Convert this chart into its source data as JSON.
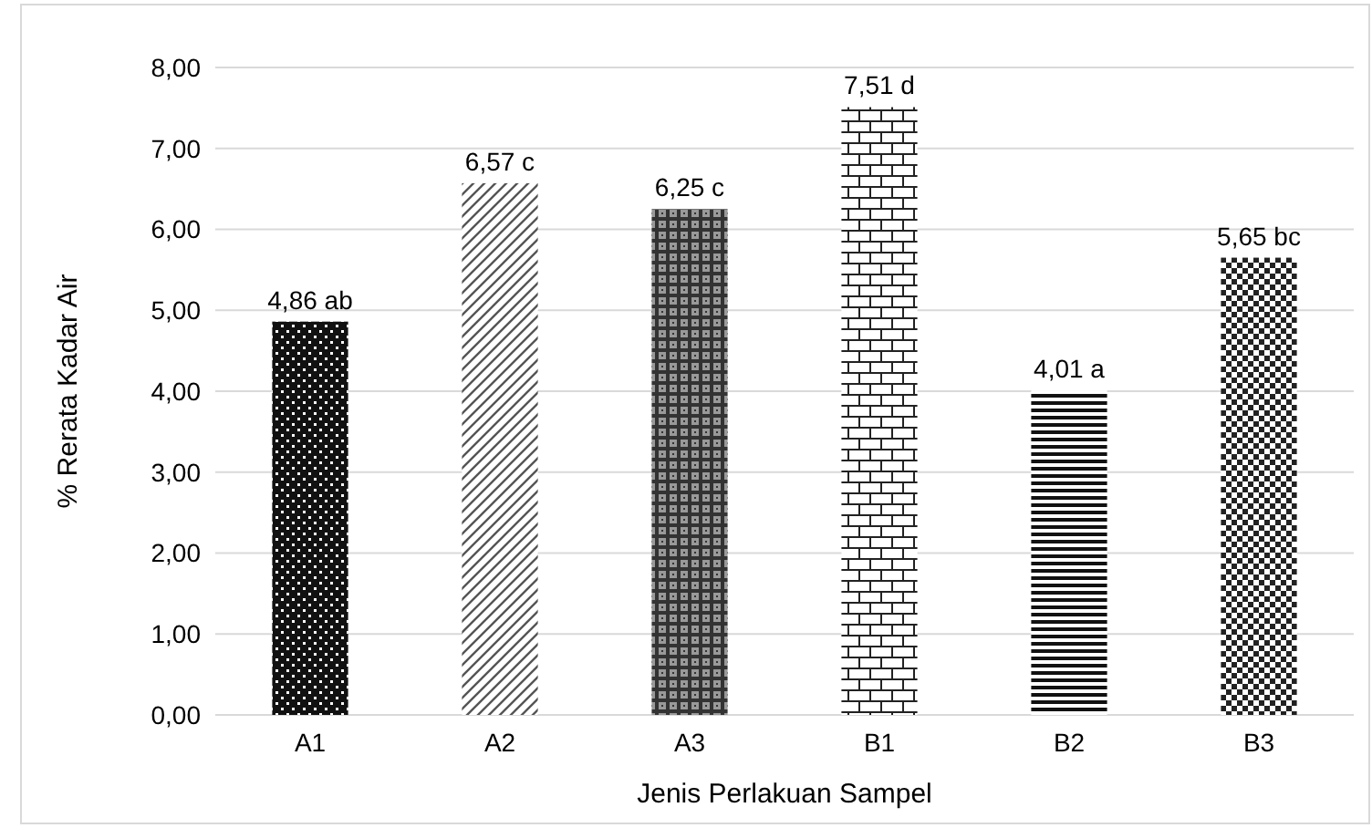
{
  "chart_data": {
    "type": "bar",
    "xlabel": "Jenis Perlakuan Sampel",
    "ylabel": "% Rerata Kadar Air",
    "categories": [
      "A1",
      "A2",
      "A3",
      "B1",
      "B2",
      "B3"
    ],
    "values": [
      4.86,
      6.57,
      6.25,
      7.51,
      4.01,
      5.65
    ],
    "value_labels": [
      "4,86 ab",
      "6,57 c",
      "6,25 c",
      "7,51 d",
      "4,01 a",
      "5,65 bc"
    ],
    "colors": [
      "#111111",
      "#555555",
      "#333333",
      "#222222",
      "#111111",
      "#222222"
    ],
    "ylim": [
      0,
      8
    ],
    "yticks": [
      {
        "value": 0,
        "label": "0,00"
      },
      {
        "value": 1,
        "label": "1,00"
      },
      {
        "value": 2,
        "label": "2,00"
      },
      {
        "value": 3,
        "label": "3,00"
      },
      {
        "value": 4,
        "label": "4,00"
      },
      {
        "value": 5,
        "label": "5,00"
      },
      {
        "value": 6,
        "label": "6,00"
      },
      {
        "value": 7,
        "label": "7,00"
      },
      {
        "value": 8,
        "label": "8,00"
      }
    ],
    "grid": "y"
  }
}
